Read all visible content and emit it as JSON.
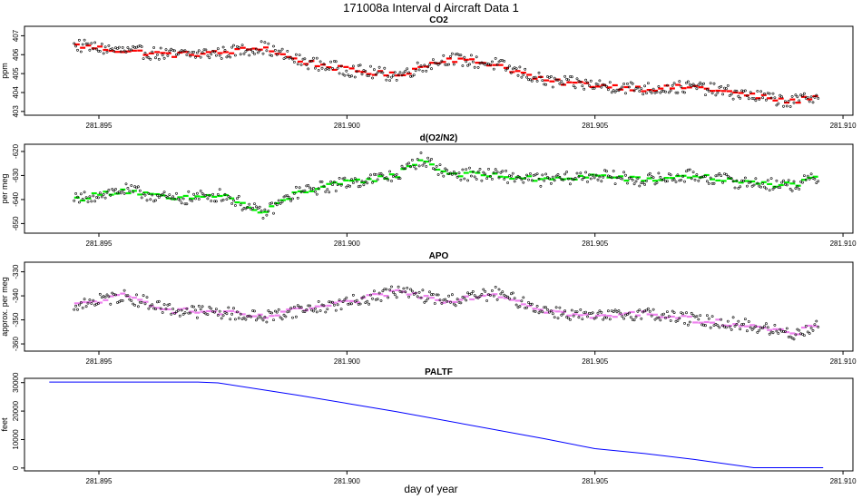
{
  "figure": {
    "title": "171008a   Interval d Aircraft Data 1",
    "xlabel": "day of year"
  },
  "colors": {
    "co2_line": "#ff0000",
    "o2n2_line": "#00ee00",
    "apo_line": "#ee82ee",
    "paltf_line": "#0000ff",
    "points": "#000000"
  },
  "chart_data": [
    {
      "type": "scatter",
      "title": "CO2",
      "ylabel": "ppm",
      "xlim": [
        281.8935,
        281.9102
      ],
      "ylim": [
        402.8,
        407.5
      ],
      "x_ticks": [
        "281.895",
        "281.900",
        "281.905",
        "281.910"
      ],
      "y_ticks": [
        "403",
        "404",
        "405",
        "406",
        "407"
      ],
      "series": [
        {
          "name": "CO2",
          "x": [
            281.8945,
            281.8955,
            281.8965,
            281.8975,
            281.8983,
            281.899,
            281.9,
            281.901,
            281.902,
            281.903,
            281.904,
            281.905,
            281.906,
            281.907,
            281.908,
            281.909,
            281.9095
          ],
          "y": [
            406.5,
            406.2,
            406.0,
            406.1,
            406.4,
            405.7,
            405.2,
            404.9,
            405.8,
            405.5,
            404.6,
            404.4,
            404.2,
            404.3,
            403.9,
            403.5,
            403.9
          ]
        }
      ]
    },
    {
      "type": "scatter",
      "title": "d(O2/N2)",
      "ylabel": "per meg",
      "xlim": [
        281.8935,
        281.9102
      ],
      "ylim": [
        -654,
        -617
      ],
      "x_ticks": [
        "281.895",
        "281.900",
        "281.905",
        "281.910"
      ],
      "y_ticks": [
        "-650",
        "-640",
        "-630",
        "-620"
      ],
      "series": [
        {
          "name": "d(O2/N2)",
          "x": [
            281.8945,
            281.8955,
            281.8965,
            281.8975,
            281.8983,
            281.899,
            281.9,
            281.901,
            281.9015,
            281.902,
            281.903,
            281.904,
            281.905,
            281.906,
            281.907,
            281.908,
            281.909,
            281.9095
          ],
          "y": [
            -640,
            -636,
            -640,
            -638,
            -646,
            -637,
            -633,
            -630,
            -623,
            -629,
            -630,
            -632,
            -630,
            -632,
            -630,
            -633,
            -634,
            -631
          ]
        }
      ]
    },
    {
      "type": "scatter",
      "title": "APO",
      "ylabel": "approx. per meg",
      "xlim": [
        281.8935,
        281.9102
      ],
      "ylim": [
        -363,
        -326
      ],
      "x_ticks": [
        "281.895",
        "281.900",
        "281.905",
        "281.910"
      ],
      "y_ticks": [
        "-360",
        "-350",
        "-340",
        "-330"
      ],
      "series": [
        {
          "name": "APO",
          "x": [
            281.8945,
            281.8955,
            281.8965,
            281.8975,
            281.8983,
            281.899,
            281.9,
            281.901,
            281.902,
            281.903,
            281.904,
            281.905,
            281.906,
            281.907,
            281.908,
            281.909,
            281.9095
          ],
          "y": [
            -344,
            -340,
            -346,
            -347,
            -349,
            -346,
            -343,
            -338,
            -342,
            -339,
            -346,
            -349,
            -347,
            -350,
            -352,
            -356,
            -352
          ]
        }
      ]
    },
    {
      "type": "line",
      "title": "PALTF",
      "ylabel": "feet",
      "xlim": [
        281.8935,
        281.9102
      ],
      "ylim": [
        -1000,
        31500
      ],
      "x_ticks": [
        "281.895",
        "281.900",
        "281.905",
        "281.910"
      ],
      "y_ticks": [
        "0",
        "10000",
        "20000",
        "30000"
      ],
      "series": [
        {
          "name": "PALTF",
          "x": [
            281.894,
            281.897,
            281.8974,
            281.899,
            281.9,
            281.901,
            281.904,
            281.905,
            281.906,
            281.907,
            281.9082,
            281.9096
          ],
          "y": [
            30200,
            30200,
            29900,
            25600,
            22700,
            19800,
            10200,
            6800,
            5100,
            3000,
            100,
            100
          ]
        }
      ]
    }
  ]
}
